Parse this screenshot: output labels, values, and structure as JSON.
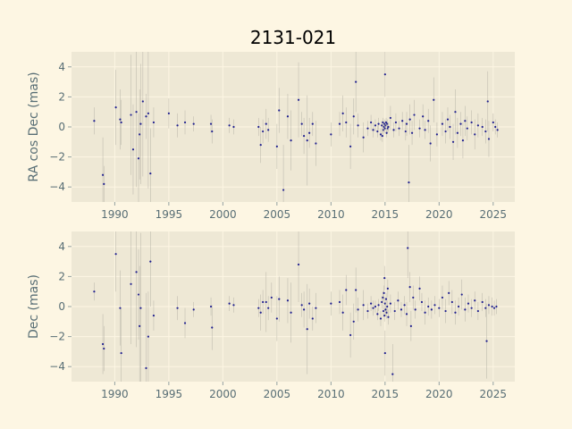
{
  "chart_data": [
    {
      "type": "scatter",
      "title": "2131-021",
      "ylabel": "RA cos Dec (mas)",
      "xlabel": "",
      "xlim": [
        1986,
        2027
      ],
      "ylim": [
        -5,
        5
      ],
      "xticks": [
        "1990",
        "1995",
        "2000",
        "2005",
        "2010",
        "2015",
        "2020",
        "2025"
      ],
      "yticks": [
        "4",
        "2",
        "0",
        "−2",
        "−4"
      ],
      "grid": true,
      "points": [
        [
          1988.1,
          0.4,
          0.9
        ],
        [
          1988.9,
          -3.2,
          2.5
        ],
        [
          1989.0,
          -3.8,
          1.2
        ],
        [
          1990.1,
          1.3,
          2.5
        ],
        [
          1990.5,
          0.5,
          2.0
        ],
        [
          1990.6,
          0.3,
          1.5
        ],
        [
          1991.5,
          0.8,
          4.0
        ],
        [
          1991.7,
          -1.5,
          3.0
        ],
        [
          1992.0,
          1.0,
          5.0
        ],
        [
          1992.2,
          -2.1,
          3.0
        ],
        [
          1992.3,
          -0.5,
          3.0
        ],
        [
          1992.4,
          0.2,
          4.0
        ],
        [
          1992.6,
          1.7,
          5.0
        ],
        [
          1992.9,
          0.7,
          1.5
        ],
        [
          1993.1,
          0.9,
          5.0
        ],
        [
          1993.3,
          -3.1,
          3.0
        ],
        [
          1993.6,
          0.3,
          1.0
        ],
        [
          1995.0,
          0.9,
          1.0
        ],
        [
          1995.8,
          0.1,
          0.8
        ],
        [
          1996.5,
          0.3,
          0.8
        ],
        [
          1997.3,
          0.2,
          0.5
        ],
        [
          1998.9,
          0.2,
          0.6
        ],
        [
          1999.0,
          -0.3,
          0.8
        ],
        [
          2000.6,
          0.1,
          0.5
        ],
        [
          2001.0,
          0.0,
          0.5
        ],
        [
          2003.3,
          0.0,
          0.6
        ],
        [
          2003.5,
          -1.2,
          1.2
        ],
        [
          2003.7,
          -0.3,
          0.8
        ],
        [
          2004.0,
          0.2,
          1.0
        ],
        [
          2004.2,
          -0.2,
          0.8
        ],
        [
          2005.0,
          -1.3,
          1.5
        ],
        [
          2005.2,
          1.1,
          1.5
        ],
        [
          2005.6,
          -4.2,
          3.0
        ],
        [
          2006.0,
          0.7,
          1.5
        ],
        [
          2006.3,
          -0.9,
          2.0
        ],
        [
          2007.0,
          1.8,
          2.5
        ],
        [
          2007.3,
          0.2,
          0.8
        ],
        [
          2007.5,
          -0.6,
          1.2
        ],
        [
          2007.8,
          -0.9,
          3.0
        ],
        [
          2008.0,
          -0.4,
          1.0
        ],
        [
          2008.3,
          0.2,
          0.8
        ],
        [
          2008.6,
          -1.1,
          1.5
        ],
        [
          2010.0,
          -0.5,
          0.8
        ],
        [
          2010.8,
          0.2,
          0.8
        ],
        [
          2011.1,
          0.9,
          1.2
        ],
        [
          2011.4,
          0.3,
          1.0
        ],
        [
          2011.8,
          -1.3,
          1.5
        ],
        [
          2012.1,
          0.7,
          1.2
        ],
        [
          2012.3,
          3.0,
          2.0
        ],
        [
          2012.5,
          0.1,
          0.8
        ],
        [
          2013.0,
          -0.7,
          1.0
        ],
        [
          2013.4,
          -0.1,
          0.5
        ],
        [
          2013.7,
          0.3,
          0.5
        ],
        [
          2013.9,
          -0.2,
          0.5
        ],
        [
          2014.1,
          0.1,
          0.4
        ],
        [
          2014.3,
          -0.3,
          0.4
        ],
        [
          2014.4,
          0.2,
          0.4
        ],
        [
          2014.6,
          -0.5,
          0.4
        ],
        [
          2014.7,
          0.1,
          0.3
        ],
        [
          2014.8,
          0.3,
          0.3
        ],
        [
          2014.85,
          -0.2,
          0.3
        ],
        [
          2014.9,
          0.0,
          0.3
        ],
        [
          2014.95,
          0.2,
          0.3
        ],
        [
          2015.0,
          -0.1,
          0.3
        ],
        [
          2015.05,
          0.1,
          0.3
        ],
        [
          2015.1,
          0.3,
          0.3
        ],
        [
          2015.15,
          -0.4,
          0.3
        ],
        [
          2015.2,
          0.2,
          0.3
        ],
        [
          2015.25,
          -0.1,
          0.3
        ],
        [
          2015.3,
          0.0,
          0.3
        ],
        [
          2014.75,
          -0.6,
          0.4
        ],
        [
          2015.0,
          3.5,
          1.5
        ],
        [
          2015.5,
          0.6,
          0.8
        ],
        [
          2015.8,
          -0.2,
          0.5
        ],
        [
          2016.0,
          0.3,
          0.6
        ],
        [
          2016.3,
          -0.1,
          0.5
        ],
        [
          2016.6,
          0.4,
          0.6
        ],
        [
          2016.9,
          -0.3,
          0.6
        ],
        [
          2017.0,
          0.2,
          0.8
        ],
        [
          2017.2,
          -3.7,
          2.5
        ],
        [
          2017.3,
          0.5,
          1.0
        ],
        [
          2017.5,
          -0.4,
          0.8
        ],
        [
          2017.7,
          0.8,
          1.0
        ],
        [
          2018.2,
          -0.1,
          0.6
        ],
        [
          2018.5,
          0.7,
          0.8
        ],
        [
          2018.7,
          -0.2,
          0.6
        ],
        [
          2019.0,
          0.4,
          0.8
        ],
        [
          2019.2,
          -1.1,
          1.2
        ],
        [
          2019.5,
          1.8,
          1.5
        ],
        [
          2019.8,
          -0.5,
          0.8
        ],
        [
          2020.3,
          0.2,
          0.8
        ],
        [
          2020.6,
          -0.3,
          0.8
        ],
        [
          2020.8,
          0.5,
          0.8
        ],
        [
          2021.0,
          0.0,
          0.8
        ],
        [
          2021.3,
          -1.0,
          1.2
        ],
        [
          2021.5,
          1.0,
          1.5
        ],
        [
          2021.7,
          -0.4,
          1.0
        ],
        [
          2022.0,
          0.2,
          0.8
        ],
        [
          2022.2,
          -0.9,
          1.2
        ],
        [
          2022.4,
          0.4,
          1.0
        ],
        [
          2022.6,
          -0.1,
          0.8
        ],
        [
          2023.0,
          0.3,
          0.8
        ],
        [
          2023.3,
          -0.5,
          1.0
        ],
        [
          2023.6,
          0.1,
          0.8
        ],
        [
          2024.0,
          0.0,
          0.6
        ],
        [
          2024.3,
          -0.3,
          0.8
        ],
        [
          2024.5,
          1.7,
          2.0
        ],
        [
          2024.6,
          -0.8,
          1.2
        ],
        [
          2025.0,
          0.3,
          0.6
        ],
        [
          2025.2,
          0.0,
          0.5
        ],
        [
          2025.4,
          -0.2,
          0.5
        ]
      ]
    },
    {
      "type": "scatter",
      "title": "",
      "ylabel": "Dec (mas)",
      "xlabel": "",
      "xlim": [
        1986,
        2027
      ],
      "ylim": [
        -5,
        5
      ],
      "xticks": [
        "1990",
        "1995",
        "2000",
        "2005",
        "2010",
        "2015",
        "2020",
        "2025"
      ],
      "yticks": [
        "4",
        "2",
        "0",
        "−2",
        "−4"
      ],
      "grid": true,
      "points": [
        [
          1988.1,
          1.0,
          0.6
        ],
        [
          1988.9,
          -2.5,
          2.0
        ],
        [
          1989.0,
          -2.8,
          1.5
        ],
        [
          1990.1,
          3.5,
          2.5
        ],
        [
          1990.5,
          -0.1,
          2.5
        ],
        [
          1990.6,
          -3.1,
          3.0
        ],
        [
          1991.5,
          1.5,
          4.0
        ],
        [
          1992.0,
          2.3,
          5.0
        ],
        [
          1992.2,
          0.8,
          3.0
        ],
        [
          1992.3,
          -1.3,
          4.0
        ],
        [
          1992.4,
          -0.1,
          5.0
        ],
        [
          1992.9,
          -4.1,
          5.0
        ],
        [
          1993.1,
          -2.0,
          3.0
        ],
        [
          1993.3,
          3.0,
          3.0
        ],
        [
          1993.6,
          -0.6,
          1.0
        ],
        [
          1995.8,
          -0.1,
          0.8
        ],
        [
          1996.5,
          -1.1,
          1.0
        ],
        [
          1997.3,
          -0.2,
          0.5
        ],
        [
          1998.9,
          0.0,
          0.6
        ],
        [
          1999.0,
          -1.4,
          1.5
        ],
        [
          2000.6,
          0.2,
          0.5
        ],
        [
          2001.0,
          0.1,
          0.5
        ],
        [
          2003.3,
          -0.1,
          0.6
        ],
        [
          2003.5,
          -0.4,
          1.2
        ],
        [
          2003.7,
          0.3,
          0.8
        ],
        [
          2004.0,
          0.3,
          2.0
        ],
        [
          2004.2,
          -0.1,
          0.8
        ],
        [
          2004.5,
          0.6,
          1.0
        ],
        [
          2005.0,
          -0.8,
          1.5
        ],
        [
          2005.2,
          0.5,
          1.5
        ],
        [
          2006.0,
          0.4,
          1.5
        ],
        [
          2006.3,
          -0.4,
          2.0
        ],
        [
          2007.0,
          2.8,
          2.5
        ],
        [
          2007.3,
          0.1,
          0.8
        ],
        [
          2007.5,
          -0.2,
          1.2
        ],
        [
          2007.8,
          -1.5,
          3.0
        ],
        [
          2008.0,
          0.2,
          1.0
        ],
        [
          2008.3,
          -0.8,
          0.8
        ],
        [
          2008.6,
          -0.1,
          1.0
        ],
        [
          2010.0,
          0.2,
          0.8
        ],
        [
          2010.8,
          0.3,
          0.8
        ],
        [
          2011.1,
          -0.4,
          1.2
        ],
        [
          2011.4,
          1.1,
          1.0
        ],
        [
          2011.8,
          -1.9,
          1.5
        ],
        [
          2012.1,
          -1.0,
          1.2
        ],
        [
          2012.3,
          1.1,
          1.5
        ],
        [
          2012.5,
          -0.2,
          0.8
        ],
        [
          2013.0,
          0.1,
          1.0
        ],
        [
          2013.4,
          -0.3,
          0.5
        ],
        [
          2013.7,
          0.2,
          0.5
        ],
        [
          2013.9,
          -0.1,
          0.5
        ],
        [
          2014.1,
          0.0,
          0.4
        ],
        [
          2014.3,
          -0.5,
          0.4
        ],
        [
          2014.4,
          0.1,
          0.4
        ],
        [
          2014.6,
          -0.8,
          0.5
        ],
        [
          2014.7,
          0.3,
          0.4
        ],
        [
          2014.8,
          0.6,
          0.4
        ],
        [
          2014.85,
          -0.3,
          0.4
        ],
        [
          2014.9,
          0.9,
          0.5
        ],
        [
          2014.95,
          -0.6,
          0.4
        ],
        [
          2015.0,
          0.2,
          0.4
        ],
        [
          2015.05,
          -0.2,
          0.4
        ],
        [
          2015.1,
          0.5,
          0.4
        ],
        [
          2015.15,
          -0.4,
          0.4
        ],
        [
          2015.2,
          0.0,
          0.4
        ],
        [
          2015.25,
          1.2,
          0.6
        ],
        [
          2015.3,
          -0.7,
          0.5
        ],
        [
          2014.95,
          1.9,
          0.8
        ],
        [
          2015.0,
          -3.1,
          1.5
        ],
        [
          2015.5,
          0.2,
          0.6
        ],
        [
          2015.7,
          -4.5,
          2.0
        ],
        [
          2015.9,
          -0.3,
          0.6
        ],
        [
          2016.2,
          0.4,
          0.6
        ],
        [
          2016.5,
          -0.2,
          0.5
        ],
        [
          2016.8,
          0.1,
          0.6
        ],
        [
          2017.0,
          -0.5,
          0.8
        ],
        [
          2017.1,
          3.9,
          2.0
        ],
        [
          2017.3,
          1.3,
          1.0
        ],
        [
          2017.4,
          -1.3,
          1.0
        ],
        [
          2017.6,
          0.6,
          0.8
        ],
        [
          2017.8,
          -0.2,
          0.6
        ],
        [
          2018.2,
          1.2,
          0.8
        ],
        [
          2018.4,
          0.3,
          0.6
        ],
        [
          2018.7,
          -0.4,
          0.8
        ],
        [
          2019.0,
          0.0,
          0.6
        ],
        [
          2019.3,
          -0.2,
          0.6
        ],
        [
          2019.6,
          0.1,
          0.6
        ],
        [
          2020.0,
          -0.1,
          0.6
        ],
        [
          2020.3,
          0.6,
          0.8
        ],
        [
          2020.6,
          -0.3,
          0.8
        ],
        [
          2020.9,
          0.9,
          0.8
        ],
        [
          2021.2,
          0.3,
          0.8
        ],
        [
          2021.5,
          -0.4,
          0.8
        ],
        [
          2021.8,
          0.0,
          0.6
        ],
        [
          2022.1,
          0.8,
          1.0
        ],
        [
          2022.4,
          -0.2,
          0.8
        ],
        [
          2022.7,
          0.2,
          0.6
        ],
        [
          2023.0,
          -0.1,
          0.6
        ],
        [
          2023.3,
          0.4,
          0.6
        ],
        [
          2023.6,
          -0.3,
          0.6
        ],
        [
          2024.0,
          0.3,
          0.6
        ],
        [
          2024.3,
          -0.1,
          0.6
        ],
        [
          2024.4,
          -2.3,
          2.5
        ],
        [
          2024.6,
          0.1,
          0.6
        ],
        [
          2024.9,
          0.0,
          0.6
        ],
        [
          2025.1,
          -0.1,
          0.5
        ],
        [
          2025.3,
          0.0,
          0.5
        ]
      ]
    }
  ]
}
